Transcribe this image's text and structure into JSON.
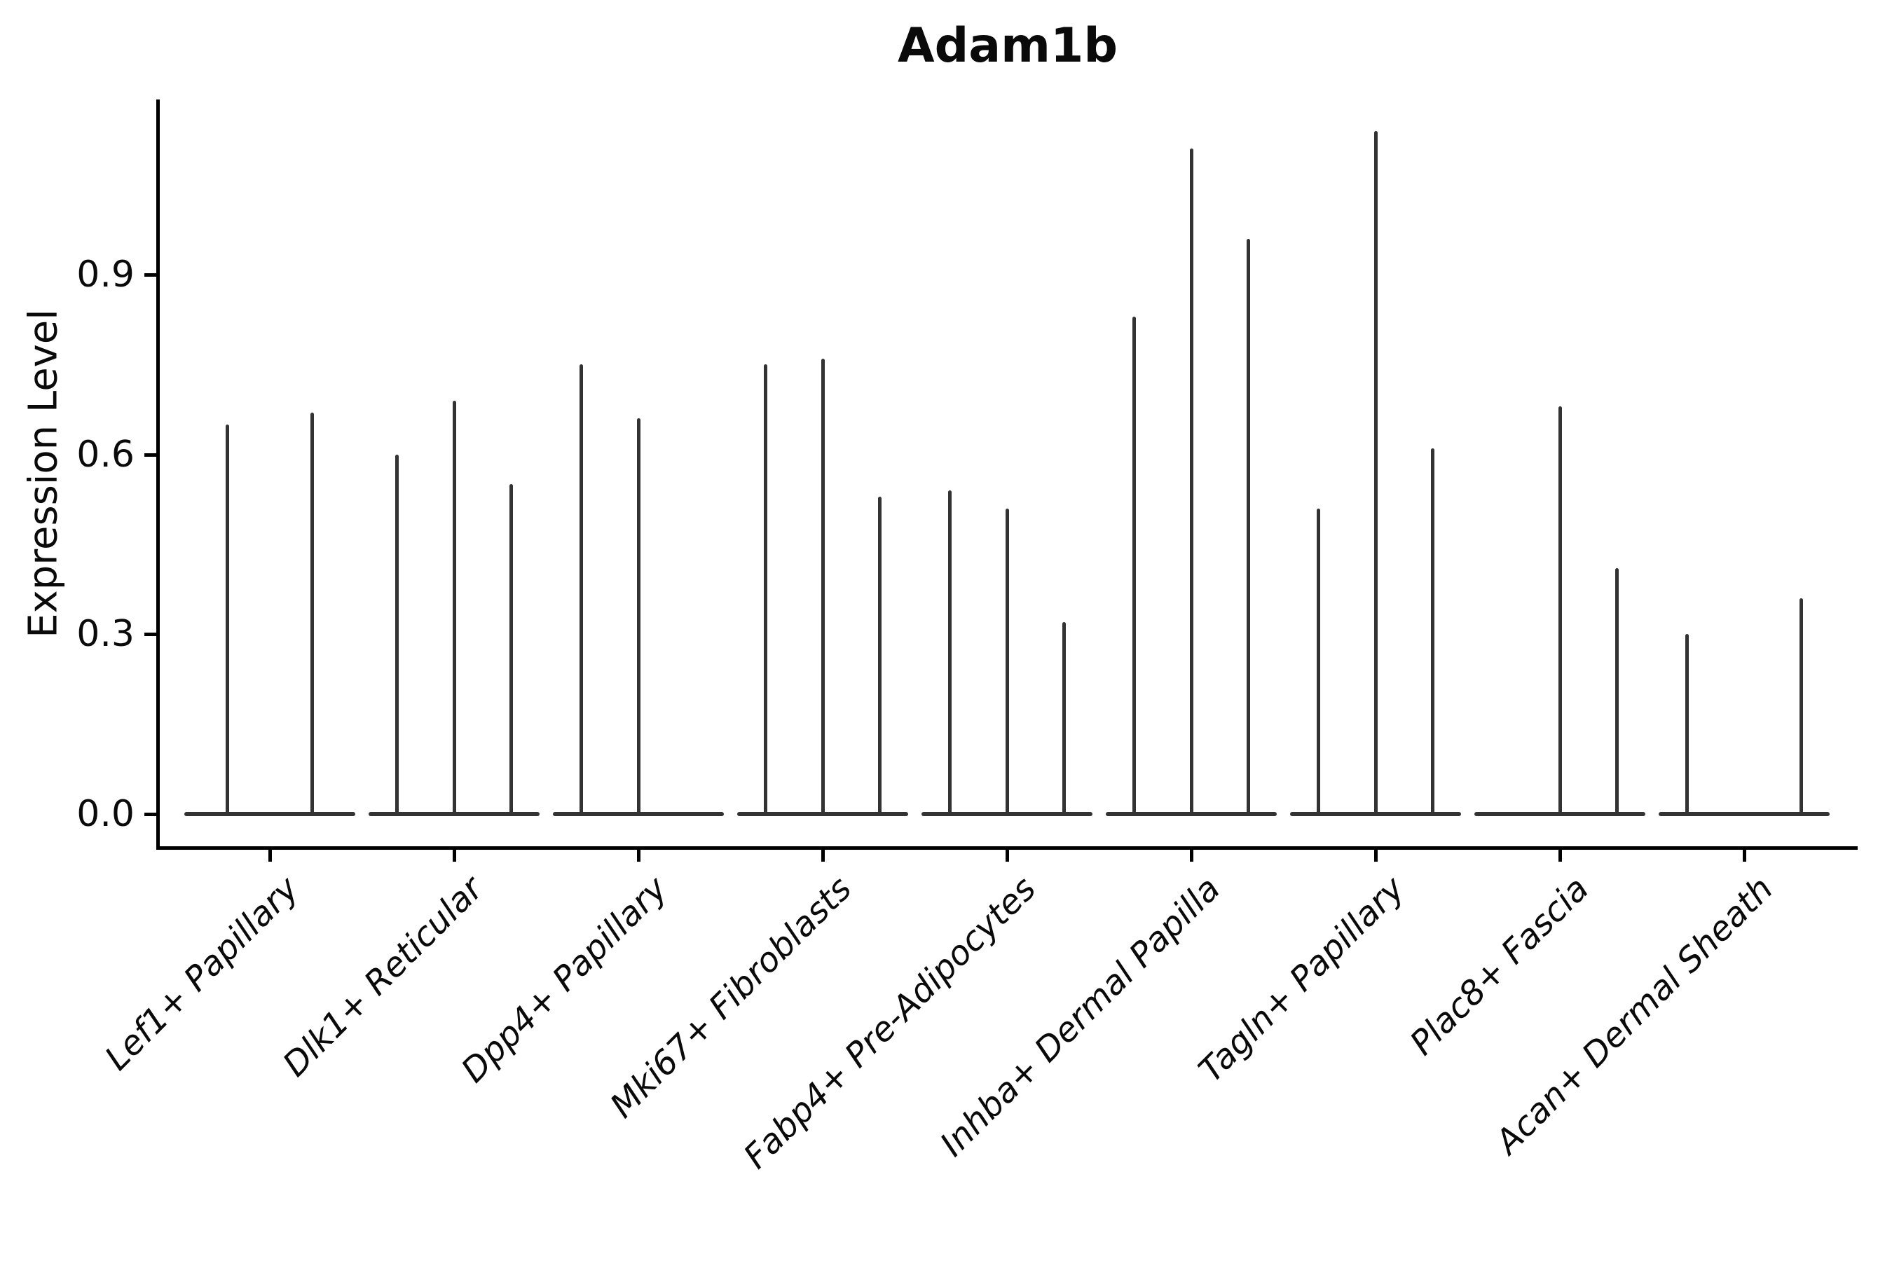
{
  "chart_data": {
    "type": "violin",
    "title": "Adam1b",
    "xlabel": "",
    "ylabel": "Expression Level",
    "ytick_labels": [
      "0.0",
      "0.3",
      "0.6",
      "0.9"
    ],
    "ytick_values": [
      0.0,
      0.3,
      0.6,
      0.9
    ],
    "ylim": [
      -0.056,
      1.192
    ],
    "grid": false,
    "legend": "none",
    "background_color": "#ffffff",
    "violin_color": "#333333",
    "axis_color": "#000000",
    "categories": [
      "Lef1+ Papillary",
      "Dlk1+ Reticular",
      "Dpp4+ Papillary",
      "Mki67+ Fibroblasts",
      "Fabp4+ Pre-Adipocytes",
      "Inhba+ Dermal Papilla",
      "Tagln+ Papillary",
      "Plac8+ Fascia",
      "Acan+ Dermal Sheath"
    ],
    "groups": [
      {
        "category": "Lef1+ Papillary",
        "violins": [
          {
            "offset": -0.23,
            "max": 0.65
          },
          {
            "offset": 0.23,
            "max": 0.67
          }
        ]
      },
      {
        "category": "Dlk1+ Reticular",
        "violins": [
          {
            "offset": -0.31,
            "max": 0.6
          },
          {
            "offset": 0.0,
            "max": 0.69
          },
          {
            "offset": 0.31,
            "max": 0.55
          }
        ]
      },
      {
        "category": "Dpp4+ Papillary",
        "violins": [
          {
            "offset": -0.31,
            "max": 0.75
          },
          {
            "offset": 0.0,
            "max": 0.66
          }
        ]
      },
      {
        "category": "Mki67+ Fibroblasts",
        "violins": [
          {
            "offset": -0.31,
            "max": 0.75
          },
          {
            "offset": 0.0,
            "max": 0.76
          },
          {
            "offset": 0.31,
            "max": 0.53
          }
        ]
      },
      {
        "category": "Fabp4+ Pre-Adipocytes",
        "violins": [
          {
            "offset": -0.31,
            "max": 0.54
          },
          {
            "offset": 0.0,
            "max": 0.51
          },
          {
            "offset": 0.31,
            "max": 0.32
          }
        ]
      },
      {
        "category": "Inhba+ Dermal Papilla",
        "violins": [
          {
            "offset": -0.31,
            "max": 0.83
          },
          {
            "offset": 0.0,
            "max": 1.11
          },
          {
            "offset": 0.31,
            "max": 0.96
          }
        ]
      },
      {
        "category": "Tagln+ Papillary",
        "violins": [
          {
            "offset": -0.31,
            "max": 0.51
          },
          {
            "offset": 0.0,
            "max": 1.14
          },
          {
            "offset": 0.31,
            "max": 0.61
          }
        ]
      },
      {
        "category": "Plac8+ Fascia",
        "violins": [
          {
            "offset": 0.0,
            "max": 0.68
          },
          {
            "offset": 0.31,
            "max": 0.41
          }
        ]
      },
      {
        "category": "Acan+ Dermal Sheath",
        "violins": [
          {
            "offset": -0.31,
            "max": 0.3
          },
          {
            "offset": 0.31,
            "max": 0.36
          }
        ]
      }
    ]
  }
}
